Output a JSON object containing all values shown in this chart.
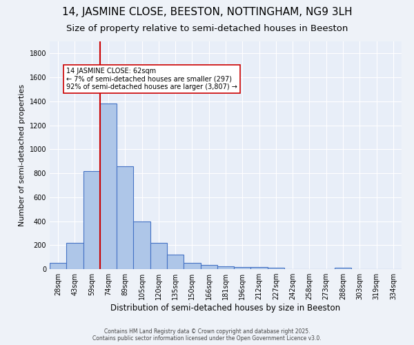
{
  "title": "14, JASMINE CLOSE, BEESTON, NOTTINGHAM, NG9 3LH",
  "subtitle": "Size of property relative to semi-detached houses in Beeston",
  "xlabel": "Distribution of semi-detached houses by size in Beeston",
  "ylabel": "Number of semi-detached properties",
  "categories": [
    "28sqm",
    "43sqm",
    "59sqm",
    "74sqm",
    "89sqm",
    "105sqm",
    "120sqm",
    "135sqm",
    "150sqm",
    "166sqm",
    "181sqm",
    "196sqm",
    "212sqm",
    "227sqm",
    "242sqm",
    "258sqm",
    "273sqm",
    "288sqm",
    "303sqm",
    "319sqm",
    "334sqm"
  ],
  "values": [
    50,
    220,
    820,
    1380,
    860,
    395,
    220,
    120,
    50,
    35,
    25,
    20,
    15,
    10,
    0,
    0,
    0,
    10,
    0,
    0,
    0
  ],
  "bar_color": "#aec6e8",
  "bar_edge_color": "#4472c4",
  "vline_index": 2,
  "vline_color": "#cc0000",
  "annotation_text": "14 JASMINE CLOSE: 62sqm\n← 7% of semi-detached houses are smaller (297)\n92% of semi-detached houses are larger (3,807) →",
  "annotation_box_color": "#ffffff",
  "annotation_box_edge": "#cc0000",
  "ylim": [
    0,
    1900
  ],
  "footer1": "Contains HM Land Registry data © Crown copyright and database right 2025.",
  "footer2": "Contains public sector information licensed under the Open Government Licence v3.0.",
  "bg_color": "#eef2f8",
  "plot_bg_color": "#e8eef8",
  "grid_color": "#ffffff",
  "title_fontsize": 11,
  "subtitle_fontsize": 9.5,
  "tick_fontsize": 7,
  "ylabel_fontsize": 8,
  "xlabel_fontsize": 8.5,
  "annotation_fontsize": 7,
  "footer_fontsize": 5.5
}
